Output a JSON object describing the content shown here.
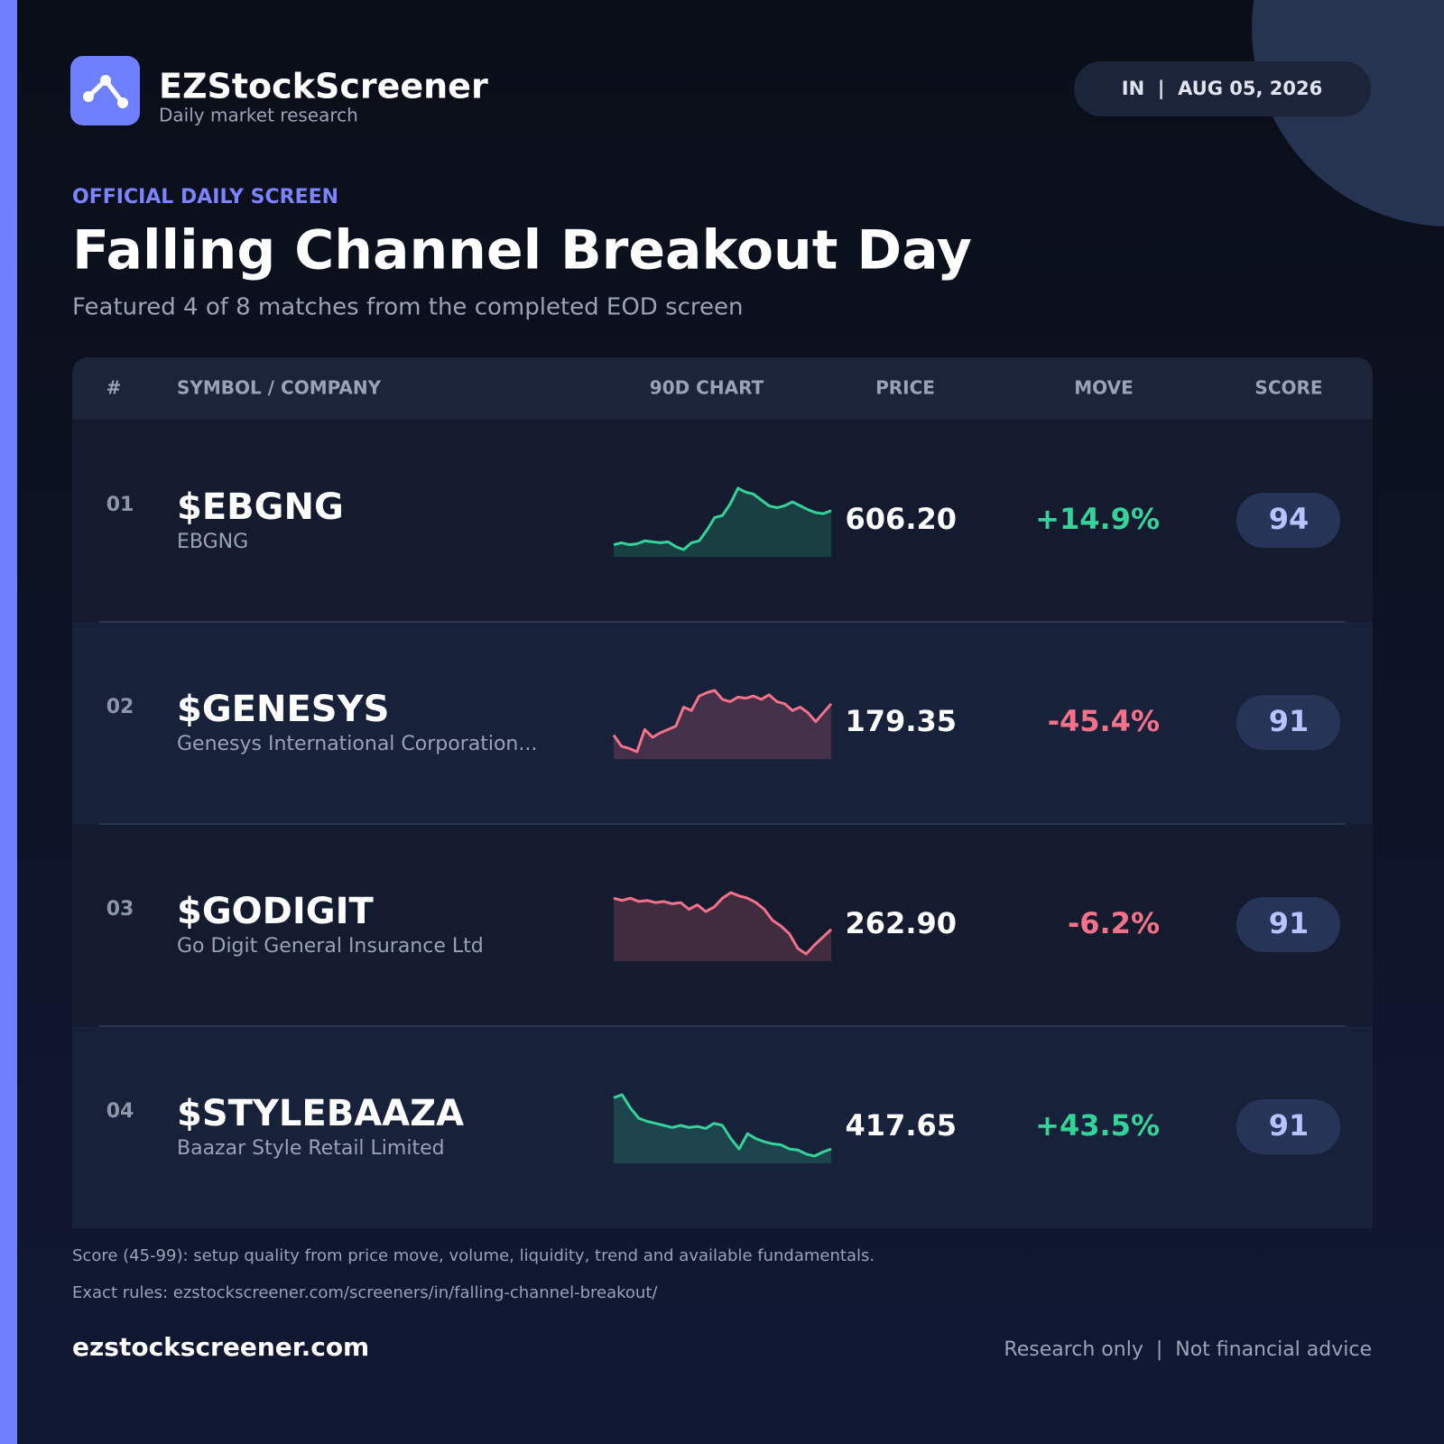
{
  "header": {
    "brand": "EZStockScreener",
    "tagline": "Daily market research",
    "badge": "IN  |  AUG 05, 2026"
  },
  "hero": {
    "eyebrow": "OFFICIAL DAILY SCREEN",
    "title": "Falling Channel Breakout Day",
    "subtitle": "Featured 4 of 8 matches from the completed EOD screen"
  },
  "table": {
    "columns": [
      "#",
      "SYMBOL / COMPANY",
      "90D CHART",
      "PRICE",
      "MOVE",
      "SCORE"
    ],
    "rows": [
      {
        "rank": "01",
        "symbol": "$EBGNG",
        "company": "EBGNG",
        "price": "606.20",
        "move": "+14.9%",
        "score": 94,
        "color": "#34d399",
        "sparkline": [
          20,
          22,
          20,
          21,
          24,
          23,
          22,
          23,
          18,
          15,
          22,
          24,
          35,
          48,
          50,
          62,
          78,
          74,
          72,
          66,
          60,
          58,
          60,
          64,
          60,
          56,
          53,
          52,
          55
        ]
      },
      {
        "rank": "02",
        "symbol": "$GENESYS",
        "company": "Genesys International Corporation...",
        "price": "179.35",
        "move": "-45.4%",
        "score": 91,
        "color": "#f47289",
        "sparkline": [
          50,
          40,
          38,
          35,
          55,
          48,
          52,
          55,
          58,
          75,
          72,
          85,
          88,
          90,
          82,
          80,
          84,
          83,
          85,
          82,
          86,
          80,
          78,
          72,
          75,
          70,
          62,
          70,
          78
        ]
      },
      {
        "rank": "03",
        "symbol": "$GODIGIT",
        "company": "Go Digit General Insurance Ltd",
        "price": "262.90",
        "move": "-6.2%",
        "score": 91,
        "color": "#f47289",
        "sparkline": [
          90,
          88,
          90,
          87,
          88,
          86,
          87,
          85,
          86,
          80,
          84,
          78,
          82,
          90,
          95,
          92,
          90,
          86,
          80,
          70,
          65,
          58,
          45,
          40,
          48,
          55,
          62
        ]
      },
      {
        "rank": "04",
        "symbol": "$STYLEBAAZA",
        "company": "Baazar Style Retail Limited",
        "price": "417.65",
        "move": "+43.5%",
        "score": 91,
        "color": "#34d399",
        "sparkline": [
          95,
          98,
          85,
          75,
          72,
          70,
          68,
          66,
          68,
          66,
          67,
          65,
          70,
          68,
          55,
          45,
          60,
          55,
          52,
          50,
          49,
          45,
          44,
          40,
          38,
          42,
          45
        ]
      }
    ]
  },
  "footer": {
    "note": "Score (45-99): setup quality from price move, volume, liquidity, trend and available fundamentals.",
    "rules": "Exact rules: ezstockscreener.com/screeners/in/falling-channel-breakout/",
    "site": "ezstockscreener.com",
    "disclaimer": "Research only  |  Not financial advice"
  }
}
